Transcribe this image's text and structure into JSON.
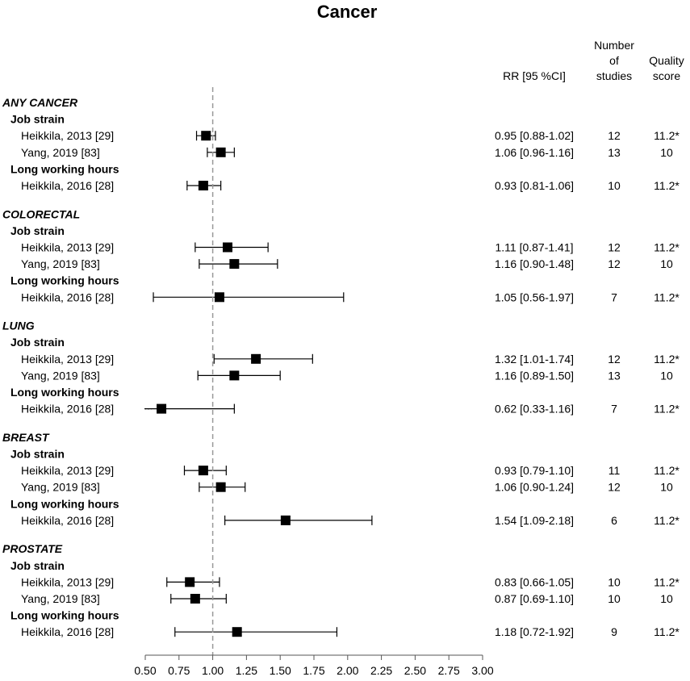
{
  "chart_data": {
    "type": "forest",
    "title": "Cancer",
    "headers": {
      "rr": "RR [95 %CI]",
      "studies": [
        "Number",
        "of",
        "studies"
      ],
      "quality": [
        "Quality",
        "score"
      ]
    },
    "reference_line": 1.0,
    "xlim": [
      0.5,
      3.0
    ],
    "xticks": [
      "0.50",
      "0.75",
      "1.00",
      "1.25",
      "1.50",
      "1.75",
      "2.00",
      "2.25",
      "2.50",
      "2.75",
      "3.00"
    ],
    "sections": [
      {
        "name": "ANY CANCER",
        "groups": [
          {
            "name": "Job strain",
            "studies": [
              {
                "label": "Heikkila, 2013 [29]",
                "rr": 0.95,
                "lo": 0.88,
                "hi": 1.02,
                "ci_text": "0.95 [0.88-1.02]",
                "n": "12",
                "quality": "11.2*"
              },
              {
                "label": "Yang, 2019 [83]",
                "rr": 1.06,
                "lo": 0.96,
                "hi": 1.16,
                "ci_text": "1.06 [0.96-1.16]",
                "n": "13",
                "quality": "10"
              }
            ]
          },
          {
            "name": "Long working hours",
            "studies": [
              {
                "label": "Heikkila, 2016 [28]",
                "rr": 0.93,
                "lo": 0.81,
                "hi": 1.06,
                "ci_text": "0.93 [0.81-1.06]",
                "n": "10",
                "quality": "11.2*"
              }
            ]
          }
        ]
      },
      {
        "name": "COLORECTAL",
        "groups": [
          {
            "name": "Job strain",
            "studies": [
              {
                "label": "Heikkila, 2013 [29]",
                "rr": 1.11,
                "lo": 0.87,
                "hi": 1.41,
                "ci_text": "1.11 [0.87-1.41]",
                "n": "12",
                "quality": "11.2*"
              },
              {
                "label": "Yang, 2019 [83]",
                "rr": 1.16,
                "lo": 0.9,
                "hi": 1.48,
                "ci_text": "1.16 [0.90-1.48]",
                "n": "12",
                "quality": "10"
              }
            ]
          },
          {
            "name": "Long working hours",
            "studies": [
              {
                "label": "Heikkila, 2016 [28]",
                "rr": 1.05,
                "lo": 0.56,
                "hi": 1.97,
                "ci_text": "1.05 [0.56-1.97]",
                "n": "7",
                "quality": "11.2*"
              }
            ]
          }
        ]
      },
      {
        "name": "LUNG",
        "groups": [
          {
            "name": "Job strain",
            "studies": [
              {
                "label": "Heikkila, 2013 [29]",
                "rr": 1.32,
                "lo": 1.01,
                "hi": 1.74,
                "ci_text": "1.32 [1.01-1.74]",
                "n": "12",
                "quality": "11.2*"
              },
              {
                "label": "Yang, 2019 [83]",
                "rr": 1.16,
                "lo": 0.89,
                "hi": 1.5,
                "ci_text": "1.16 [0.89-1.50]",
                "n": "13",
                "quality": "10"
              }
            ]
          },
          {
            "name": "Long working hours",
            "studies": [
              {
                "label": "Heikkila, 2016 [28]",
                "rr": 0.62,
                "lo": 0.33,
                "hi": 1.16,
                "ci_text": "0.62 [0.33-1.16]",
                "n": "7",
                "quality": "11.2*"
              }
            ]
          }
        ]
      },
      {
        "name": "BREAST",
        "groups": [
          {
            "name": "Job strain",
            "studies": [
              {
                "label": "Heikkila, 2013 [29]",
                "rr": 0.93,
                "lo": 0.79,
                "hi": 1.1,
                "ci_text": "0.93 [0.79-1.10]",
                "n": "11",
                "quality": "11.2*"
              },
              {
                "label": "Yang, 2019 [83]",
                "rr": 1.06,
                "lo": 0.9,
                "hi": 1.24,
                "ci_text": "1.06 [0.90-1.24]",
                "n": "12",
                "quality": "10"
              }
            ]
          },
          {
            "name": "Long working hours",
            "studies": [
              {
                "label": "Heikkila, 2016 [28]",
                "rr": 1.54,
                "lo": 1.09,
                "hi": 2.18,
                "ci_text": "1.54 [1.09-2.18]",
                "n": "6",
                "quality": "11.2*"
              }
            ]
          }
        ]
      },
      {
        "name": "PROSTATE",
        "groups": [
          {
            "name": "Job strain",
            "studies": [
              {
                "label": "Heikkila, 2013 [29]",
                "rr": 0.83,
                "lo": 0.66,
                "hi": 1.05,
                "ci_text": "0.83 [0.66-1.05]",
                "n": "10",
                "quality": "11.2*"
              },
              {
                "label": "Yang, 2019 [83]",
                "rr": 0.87,
                "lo": 0.69,
                "hi": 1.1,
                "ci_text": "0.87 [0.69-1.10]",
                "n": "10",
                "quality": "10"
              }
            ]
          },
          {
            "name": "Long working hours",
            "studies": [
              {
                "label": "Heikkila, 2016 [28]",
                "rr": 1.18,
                "lo": 0.72,
                "hi": 1.92,
                "ci_text": "1.18 [0.72-1.92]",
                "n": "9",
                "quality": "11.2*"
              }
            ]
          }
        ]
      }
    ]
  }
}
